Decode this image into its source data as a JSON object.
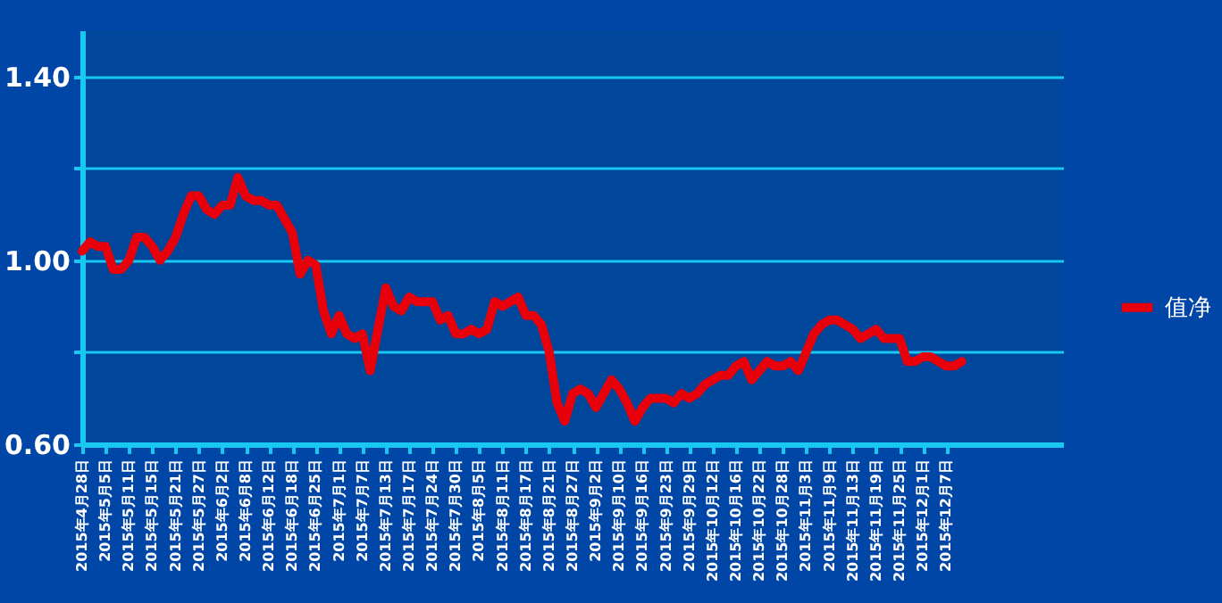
{
  "chart_data": {
    "type": "line",
    "categories": [
      "2015年4月28日",
      null,
      null,
      "2015年5月5日",
      null,
      null,
      "2015年5月11日",
      null,
      null,
      "2015年5月15日",
      null,
      null,
      "2015年5月21日",
      null,
      null,
      "2015年5月27日",
      null,
      null,
      "2015年6月2日",
      null,
      null,
      "2015年6月8日",
      null,
      null,
      "2015年6月12日",
      null,
      null,
      "2015年6月18日",
      null,
      null,
      "2015年6月25日",
      null,
      null,
      "2015年7月1日",
      null,
      null,
      "2015年7月7日",
      null,
      null,
      "2015年7月13日",
      null,
      null,
      "2015年7月17日",
      null,
      null,
      "2015年7月24日",
      null,
      null,
      "2015年7月30日",
      null,
      null,
      "2015年8月5日",
      null,
      null,
      "2015年8月11日",
      null,
      null,
      "2015年8月17日",
      null,
      null,
      "2015年8月21日",
      null,
      null,
      "2015年8月27日",
      null,
      null,
      "2015年9月2日",
      null,
      null,
      "2015年9月10日",
      null,
      null,
      "2015年9月16日",
      null,
      null,
      "2015年9月23日",
      null,
      null,
      "2015年9月29日",
      null,
      null,
      "2015年10月12日",
      null,
      null,
      "2015年10月16日",
      null,
      null,
      "2015年10月22日",
      null,
      null,
      "2015年10月28日",
      null,
      null,
      "2015年11月3日",
      null,
      null,
      "2015年11月9日",
      null,
      null,
      "2015年11月13日",
      null,
      null,
      "2015年11月19日",
      null,
      null,
      "2015年11月25日",
      null,
      null,
      "2015年12月1日",
      null,
      null,
      "2015年12月7日",
      null,
      null,
      null,
      null,
      null,
      null,
      null,
      null,
      null,
      null,
      null,
      null,
      null,
      null,
      null
    ],
    "series": [
      {
        "name": "值净",
        "color": "#e8000b",
        "values": [
          1.02,
          1.04,
          1.03,
          1.03,
          0.98,
          0.98,
          1.0,
          1.05,
          1.05,
          1.03,
          1.0,
          1.02,
          1.05,
          1.1,
          1.14,
          1.14,
          1.11,
          1.1,
          1.12,
          1.12,
          1.18,
          1.14,
          1.13,
          1.13,
          1.12,
          1.12,
          1.09,
          1.06,
          0.97,
          1.0,
          0.99,
          0.89,
          0.84,
          0.88,
          0.84,
          0.83,
          0.84,
          0.76,
          0.85,
          0.94,
          0.9,
          0.89,
          0.92,
          0.91,
          0.91,
          0.91,
          0.87,
          0.88,
          0.84,
          0.84,
          0.85,
          0.84,
          0.85,
          0.91,
          0.9,
          0.91,
          0.92,
          0.88,
          0.88,
          0.86,
          0.8,
          0.69,
          0.65,
          0.71,
          0.72,
          0.71,
          0.68,
          0.71,
          0.74,
          0.72,
          0.69,
          0.65,
          0.68,
          0.7,
          0.7,
          0.7,
          0.69,
          0.71,
          0.7,
          0.71,
          0.73,
          0.74,
          0.75,
          0.75,
          0.77,
          0.78,
          0.74,
          0.76,
          0.78,
          0.77,
          0.77,
          0.78,
          0.76,
          0.8,
          0.84,
          0.86,
          0.87,
          0.87,
          0.86,
          0.85,
          0.83,
          0.84,
          0.85,
          0.83,
          0.83,
          0.83,
          0.78,
          0.78,
          0.79,
          0.79,
          0.78,
          0.77,
          0.77,
          0.78,
          null,
          null,
          null,
          null,
          null,
          null,
          null,
          null,
          null,
          null,
          null,
          null,
          null
        ]
      }
    ],
    "ylim": [
      0.6,
      1.5
    ],
    "yticks": [
      {
        "value": 0.6,
        "label": "0.60"
      },
      {
        "value": 0.8,
        "label": null
      },
      {
        "value": 1.0,
        "label": "1.00"
      },
      {
        "value": 1.2,
        "label": null
      },
      {
        "value": 1.4,
        "label": "1.40"
      }
    ],
    "grid": "y",
    "legend": "right",
    "marker": "none",
    "line_style": "solid"
  }
}
